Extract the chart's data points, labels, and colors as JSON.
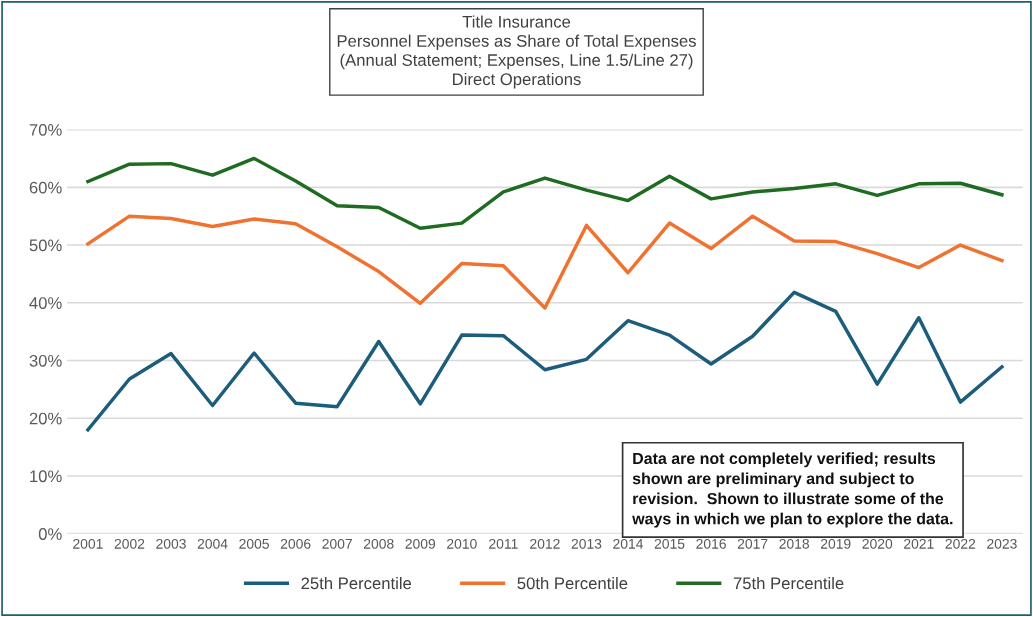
{
  "chart_data": {
    "type": "line",
    "title": "Title Insurance\nPersonnel Expenses as Share of Total Expenses\n(Annual Statement; Expenses, Line 1.5/Line 27)\nDirect Operations",
    "categories": [
      "2001",
      "2002",
      "2003",
      "2004",
      "2005",
      "2006",
      "2007",
      "2008",
      "2009",
      "2010",
      "2011",
      "2012",
      "2013",
      "2014",
      "2015",
      "2016",
      "2017",
      "2018",
      "2019",
      "2020",
      "2021",
      "2022",
      "2023"
    ],
    "series": [
      {
        "name": "25th Percentile",
        "color": "#1c5d7c",
        "values": [
          18,
          26.8,
          31.2,
          22.2,
          31.3,
          22.6,
          22,
          33.3,
          22.5,
          34.4,
          34.3,
          28.4,
          30.2,
          36.9,
          34.4,
          29.4,
          34.2,
          41.8,
          38.5,
          25.9,
          37.4,
          22.8,
          28.9
        ]
      },
      {
        "name": "50th Percentile",
        "color": "#ef7230",
        "values": [
          50.2,
          55,
          54.6,
          53.2,
          54.5,
          53.7,
          49.7,
          45.4,
          39.9,
          46.8,
          46.4,
          39.1,
          53.4,
          45.2,
          53.8,
          49.4,
          55,
          50.7,
          50.6,
          48.5,
          46.1,
          50,
          47.3
        ]
      },
      {
        "name": "75th Percentile",
        "color": "#1e6b21",
        "values": [
          61,
          64,
          64.1,
          62.1,
          65,
          61.1,
          56.8,
          56.5,
          52.9,
          53.8,
          59.2,
          61.6,
          59.5,
          57.7,
          61.9,
          58,
          59.2,
          59.8,
          60.6,
          58.6,
          60.6,
          60.7,
          58.7
        ]
      }
    ],
    "ylim": [
      0,
      70
    ],
    "yticks": [
      {
        "value": 0,
        "label": "0%"
      },
      {
        "value": 10,
        "label": "10%"
      },
      {
        "value": 20,
        "label": "20%"
      },
      {
        "value": 30,
        "label": "30%"
      },
      {
        "value": 40,
        "label": "40%"
      },
      {
        "value": 50,
        "label": "50%"
      },
      {
        "value": 60,
        "label": "60%"
      },
      {
        "value": 70,
        "label": "70%"
      }
    ],
    "grid": "y",
    "legend": "bottom",
    "marker": "none",
    "line_style": "solid",
    "annotations": [
      "Data are not completely verified; results\nshown are preliminary and subject to\nrevision.  Shown to illustrate some of the\nways in which we plan to explore the data."
    ]
  }
}
